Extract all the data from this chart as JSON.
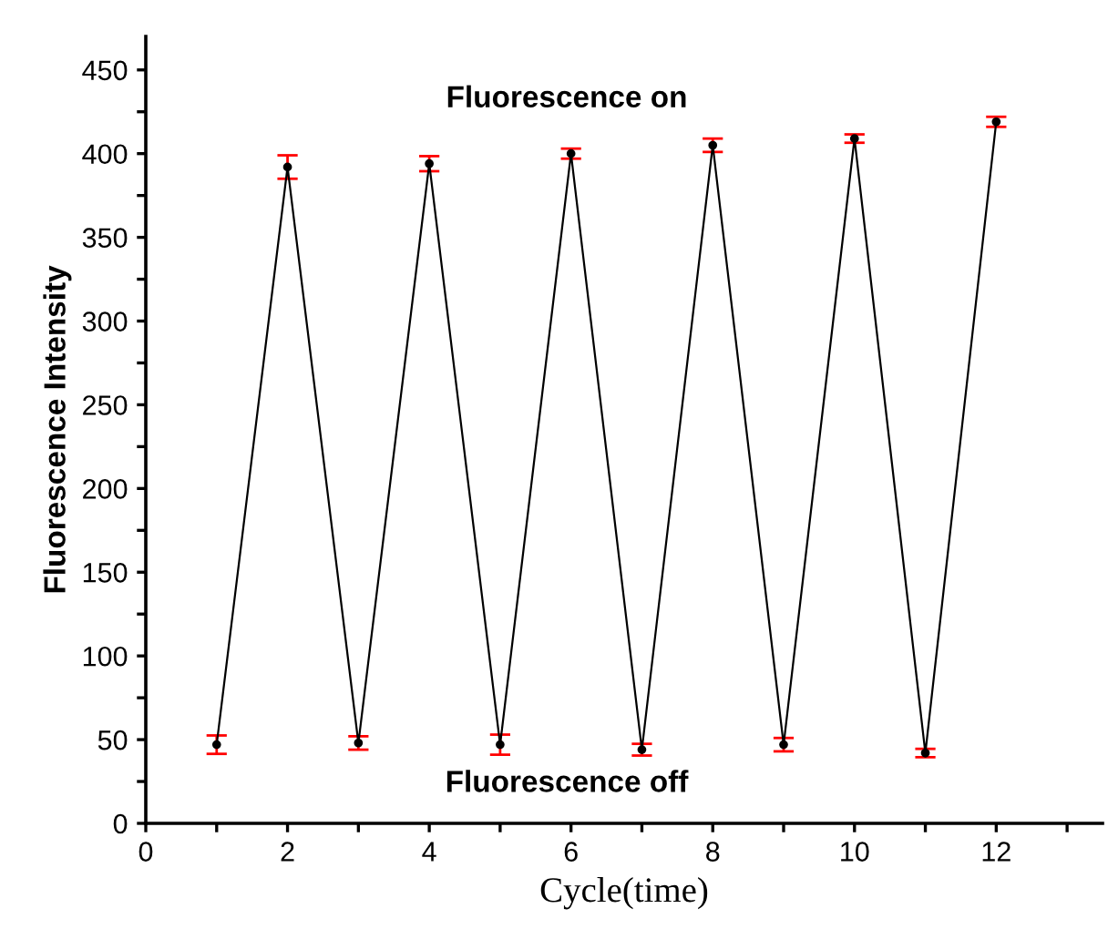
{
  "chart_data": {
    "type": "line",
    "xlabel": "Cycle(time)",
    "ylabel": "Fluorescence Intensity",
    "annotations": [
      "Fluorescence on",
      "Fluorescence off"
    ],
    "x": [
      1,
      2,
      3,
      4,
      5,
      6,
      7,
      8,
      9,
      10,
      11,
      12
    ],
    "series": [
      {
        "color": "#000000",
        "values": [
          47,
          392,
          48,
          394,
          47,
          400,
          44,
          405,
          47,
          409,
          42,
          419
        ],
        "errors": [
          5.5,
          7,
          4,
          4.5,
          6,
          3,
          3.5,
          4,
          4,
          2.5,
          2.5,
          3
        ]
      }
    ],
    "marker": "circle",
    "line_style": "solid",
    "grid": false,
    "legend": false,
    "xlim": [
      0,
      13.5
    ],
    "ylim": [
      0,
      470
    ],
    "xticks": [
      0,
      {
        "value": 1,
        "label": null
      },
      2,
      {
        "value": 3,
        "label": null
      },
      4,
      {
        "value": 5,
        "label": null
      },
      6,
      {
        "value": 7,
        "label": null
      },
      8,
      {
        "value": 9,
        "label": null
      },
      10,
      {
        "value": 11,
        "label": null
      },
      12,
      {
        "value": 13,
        "label": null
      }
    ],
    "yticks": [
      0,
      {
        "value": 25,
        "label": null
      },
      50,
      {
        "value": 75,
        "label": null
      },
      100,
      {
        "value": 125,
        "label": null
      },
      150,
      {
        "value": 175,
        "label": null
      },
      200,
      {
        "value": 225,
        "label": null
      },
      250,
      {
        "value": 275,
        "label": null
      },
      300,
      {
        "value": 325,
        "label": null
      },
      350,
      {
        "value": 375,
        "label": null
      },
      400,
      {
        "value": 425,
        "label": null
      },
      450
    ]
  }
}
